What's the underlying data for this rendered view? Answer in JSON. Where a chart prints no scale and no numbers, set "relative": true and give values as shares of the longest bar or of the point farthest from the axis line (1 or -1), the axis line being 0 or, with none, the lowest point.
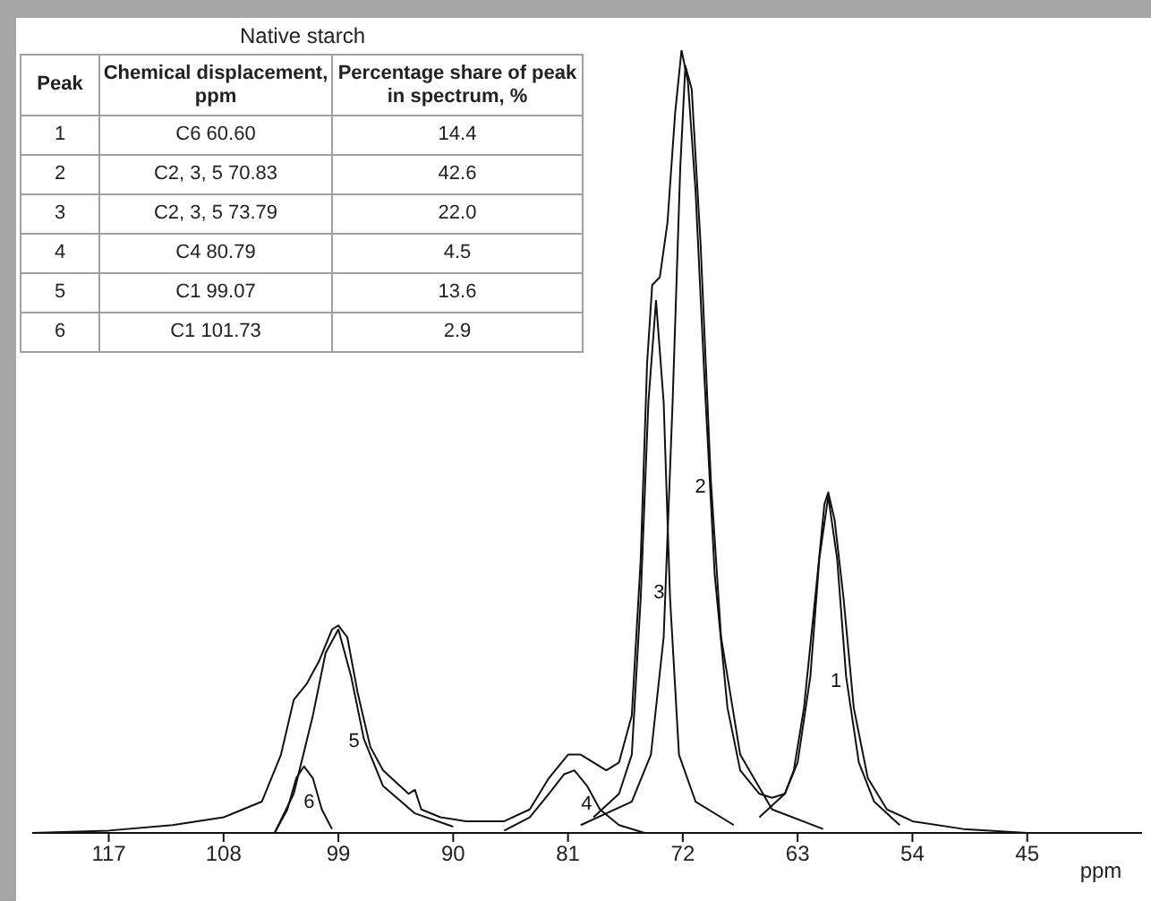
{
  "chart_data": {
    "type": "line",
    "title": "Native starch",
    "xlabel": "ppm",
    "relative": true,
    "xlim": [
      123,
      36
    ],
    "xticks": [
      117,
      108,
      99,
      90,
      81,
      72,
      63,
      54,
      45
    ],
    "grid": false,
    "marker": "none",
    "line_style": "solid",
    "series": [
      {
        "color": "#111111",
        "x": [
          123,
          117,
          112,
          108,
          105,
          103.5,
          102.5,
          101.5,
          100.5,
          99.5,
          99,
          98.3,
          97.5,
          96.5,
          95.5,
          94.5,
          93.5,
          93,
          92.5,
          91,
          89,
          86,
          84,
          82.5,
          81,
          80,
          79,
          78,
          77,
          76,
          75.3,
          74.8,
          74.4,
          73.8,
          73.2,
          72.6,
          72.1,
          71.6,
          71,
          70.3,
          69.5,
          68.5,
          67.5,
          66,
          65,
          64,
          63.3,
          62.5,
          61.5,
          60.9,
          60.6,
          60.1,
          59.4,
          58.6,
          57.5,
          56,
          54,
          50,
          45,
          36
        ],
        "values": [
          0,
          0.003,
          0.01,
          0.02,
          0.04,
          0.1,
          0.17,
          0.19,
          0.22,
          0.26,
          0.265,
          0.25,
          0.18,
          0.11,
          0.08,
          0.065,
          0.05,
          0.055,
          0.03,
          0.02,
          0.015,
          0.015,
          0.03,
          0.07,
          0.1,
          0.1,
          0.09,
          0.08,
          0.09,
          0.15,
          0.35,
          0.6,
          0.7,
          0.71,
          0.78,
          0.92,
          1,
          0.96,
          0.82,
          0.58,
          0.33,
          0.16,
          0.08,
          0.05,
          0.045,
          0.05,
          0.08,
          0.16,
          0.32,
          0.42,
          0.435,
          0.4,
          0.3,
          0.16,
          0.07,
          0.03,
          0.015,
          0.005,
          0,
          0
        ]
      },
      {
        "name": "1",
        "color": "#111111",
        "x": [
          66,
          64,
          63,
          62,
          61.3,
          60.6,
          59.9,
          59.2,
          58.2,
          57,
          55
        ],
        "values": [
          0.02,
          0.05,
          0.09,
          0.2,
          0.35,
          0.43,
          0.35,
          0.2,
          0.09,
          0.04,
          0.01
        ]
      },
      {
        "name": "2",
        "color": "#111111",
        "x": [
          80,
          76,
          74.5,
          73.5,
          72.8,
          72.2,
          71.8,
          71.3,
          70.6,
          69.8,
          69,
          67.5,
          65,
          61
        ],
        "values": [
          0.01,
          0.04,
          0.1,
          0.25,
          0.55,
          0.85,
          0.98,
          0.95,
          0.75,
          0.45,
          0.25,
          0.1,
          0.03,
          0.005
        ]
      },
      {
        "name": "3",
        "color": "#111111",
        "x": [
          79,
          77,
          76,
          75.3,
          74.7,
          74.1,
          73.5,
          73,
          72.3,
          71,
          68
        ],
        "values": [
          0.02,
          0.05,
          0.1,
          0.3,
          0.55,
          0.68,
          0.55,
          0.3,
          0.1,
          0.04,
          0.01
        ]
      },
      {
        "name": "4",
        "color": "#111111",
        "x": [
          86,
          84,
          82.5,
          81.3,
          80.5,
          79.5,
          78.5,
          77,
          75
        ],
        "values": [
          0.003,
          0.02,
          0.05,
          0.075,
          0.08,
          0.06,
          0.03,
          0.01,
          0
        ]
      },
      {
        "name": "5",
        "color": "#111111",
        "x": [
          104,
          102.5,
          101,
          100,
          99,
          98,
          97,
          95.5,
          93,
          90
        ],
        "values": [
          0,
          0.05,
          0.15,
          0.23,
          0.26,
          0.2,
          0.12,
          0.06,
          0.025,
          0.008
        ]
      },
      {
        "name": "6",
        "color": "#111111",
        "x": [
          104,
          103,
          102.3,
          101.7,
          101,
          100.3,
          99.5
        ],
        "values": [
          0,
          0.03,
          0.07,
          0.085,
          0.07,
          0.03,
          0.005
        ]
      }
    ],
    "annotations": [
      "Peak",
      "Chemical displacement, ppm",
      "Percentage share of peak in spectrum, %",
      "1",
      "C6 60.60",
      "14.4",
      "2",
      "C2, 3, 5 70.83",
      "42.6",
      "3",
      "C2, 3, 5 73.79",
      "22.0",
      "4",
      "C4 80.79",
      "4.5",
      "5",
      "C1 99.07",
      "13.6",
      "6",
      "C1 101.73",
      "2.9"
    ]
  }
}
